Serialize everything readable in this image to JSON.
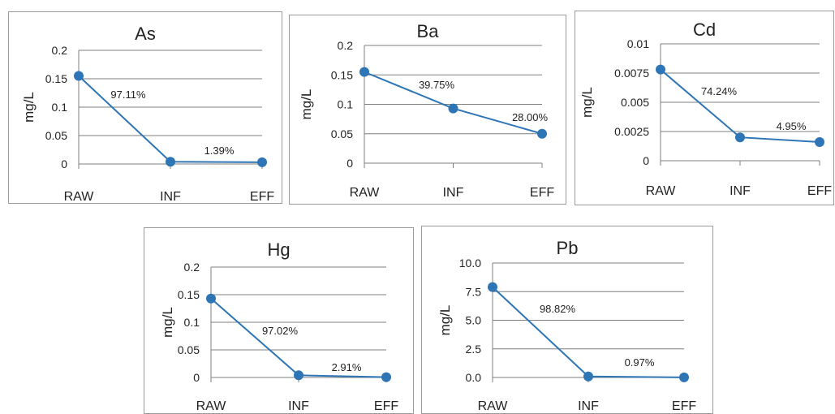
{
  "chart_data": [
    {
      "type": "line",
      "title": "As",
      "ylabel": "mg/L",
      "categories": [
        "RAW",
        "INF",
        "EFF"
      ],
      "values": [
        0.155,
        0.004,
        0.003
      ],
      "ylim": [
        0,
        0.2
      ],
      "yticks": [
        "0",
        "0.05",
        "0.1",
        "0.15",
        "0.2"
      ],
      "annotations": [
        "97.11%",
        "1.39%"
      ],
      "grid": true,
      "legend": false,
      "color": "#2e75b6"
    },
    {
      "type": "line",
      "title": "Ba",
      "ylabel": "mg/L",
      "categories": [
        "RAW",
        "INF",
        "EFF"
      ],
      "values": [
        0.155,
        0.093,
        0.05
      ],
      "ylim": [
        0,
        0.2
      ],
      "yticks": [
        "0",
        "0.05",
        "0.1",
        "0.15",
        "0.2"
      ],
      "annotations": [
        "39.75%",
        "28.00%"
      ],
      "grid": true,
      "legend": false,
      "color": "#2e75b6"
    },
    {
      "type": "line",
      "title": "Cd",
      "ylabel": "mg/L",
      "categories": [
        "RAW",
        "INF",
        "EFF"
      ],
      "values": [
        0.0078,
        0.002,
        0.0016
      ],
      "ylim": [
        0,
        0.01
      ],
      "yticks": [
        "0",
        "0.0025",
        "0.005",
        "0.0075",
        "0.01"
      ],
      "annotations": [
        "74.24%",
        "4.95%"
      ],
      "grid": true,
      "legend": false,
      "color": "#2e75b6"
    },
    {
      "type": "line",
      "title": "Hg",
      "ylabel": "mg/L",
      "categories": [
        "RAW",
        "INF",
        "EFF"
      ],
      "values": [
        0.143,
        0.004,
        0.0005
      ],
      "ylim": [
        0,
        0.2
      ],
      "yticks": [
        "0",
        "0.05",
        "0.1",
        "0.15",
        "0.2"
      ],
      "annotations": [
        "97.02%",
        "2.91%"
      ],
      "grid": true,
      "legend": false,
      "color": "#2e75b6"
    },
    {
      "type": "line",
      "title": "Pb",
      "ylabel": "mg/L",
      "categories": [
        "RAW",
        "INF",
        "EFF"
      ],
      "values": [
        7.9,
        0.09,
        0.01
      ],
      "ylim": [
        0,
        10
      ],
      "yticks": [
        "0.0",
        "2.5",
        "5.0",
        "7.5",
        "10.0"
      ],
      "annotations": [
        "98.82%",
        "0.97%"
      ],
      "grid": true,
      "legend": false,
      "color": "#2e75b6"
    }
  ]
}
